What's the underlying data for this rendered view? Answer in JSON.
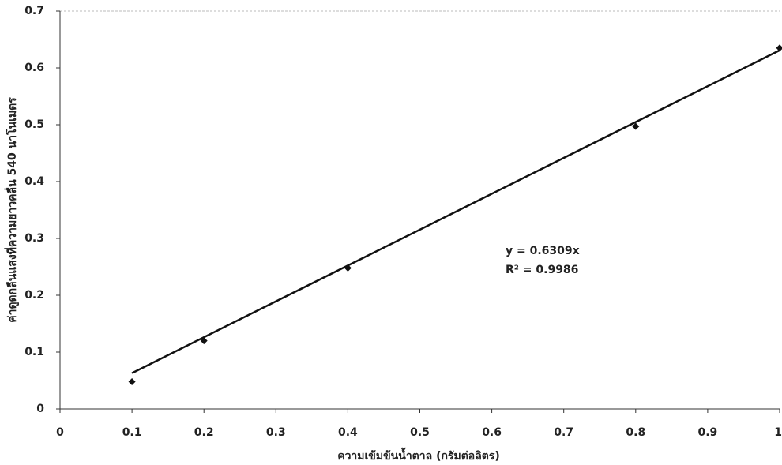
{
  "chart_data": {
    "type": "scatter",
    "x_label": "ความเข้มข้นน้ำตาล (กรัมต่อลิตร)",
    "y_label": "ค่าดูดกลืนแสงที่ความยาวคลื่น 540 นาโนเมตร",
    "x": [
      0.1,
      0.2,
      0.4,
      0.8,
      1
    ],
    "values": [
      0.048,
      0.12,
      0.248,
      0.497,
      0.635
    ],
    "color": "#111111",
    "xlim": [
      0,
      1
    ],
    "ylim": [
      0,
      0.7
    ],
    "xticks": [
      0,
      0.1,
      0.2,
      0.3,
      0.4,
      0.5,
      0.6,
      0.7,
      0.8,
      0.9,
      1
    ],
    "yticks": [
      0,
      0.1,
      0.2,
      0.3,
      0.4,
      0.5,
      0.6,
      0.7
    ],
    "grid": false,
    "trendline": {
      "slope": 0.6309,
      "equation": "y = 0.6309x",
      "r_squared": "R² = 0.9986"
    }
  }
}
